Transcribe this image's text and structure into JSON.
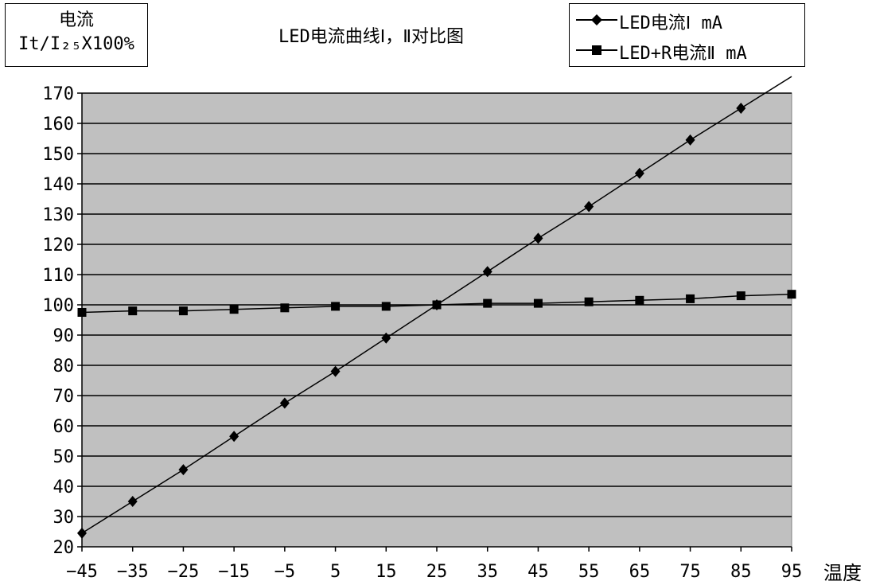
{
  "chart_data": {
    "type": "line",
    "title": "LED电流曲线Ⅰ，Ⅱ对比图",
    "ylabel_line1": "电流",
    "ylabel_line2": "It/I₂₅X100%",
    "xlabel": "温度",
    "x": [
      -45,
      -35,
      -25,
      -15,
      -5,
      5,
      15,
      25,
      35,
      45,
      55,
      65,
      75,
      85,
      95
    ],
    "ylim": [
      20,
      170
    ],
    "yticks": [
      20,
      30,
      40,
      50,
      60,
      70,
      80,
      90,
      100,
      110,
      120,
      130,
      140,
      150,
      160,
      170
    ],
    "grid": "horizontal",
    "legend_position": "top-right",
    "series": [
      {
        "name": "LED电流Ⅰ mA",
        "marker": "diamond",
        "values": [
          24.5,
          35,
          45.5,
          56.5,
          67.5,
          78,
          89,
          100,
          111,
          122,
          132.5,
          143.5,
          154.5,
          165,
          175.5
        ]
      },
      {
        "name": "LED+R电流Ⅱ mA",
        "marker": "square",
        "values": [
          97.5,
          98,
          98,
          98.5,
          99,
          99.5,
          99.5,
          100,
          100.5,
          100.5,
          101,
          101.5,
          102,
          103,
          103.5
        ]
      }
    ],
    "colors": {
      "plot_bg": "#c0c0c0",
      "line": "#000000"
    }
  }
}
